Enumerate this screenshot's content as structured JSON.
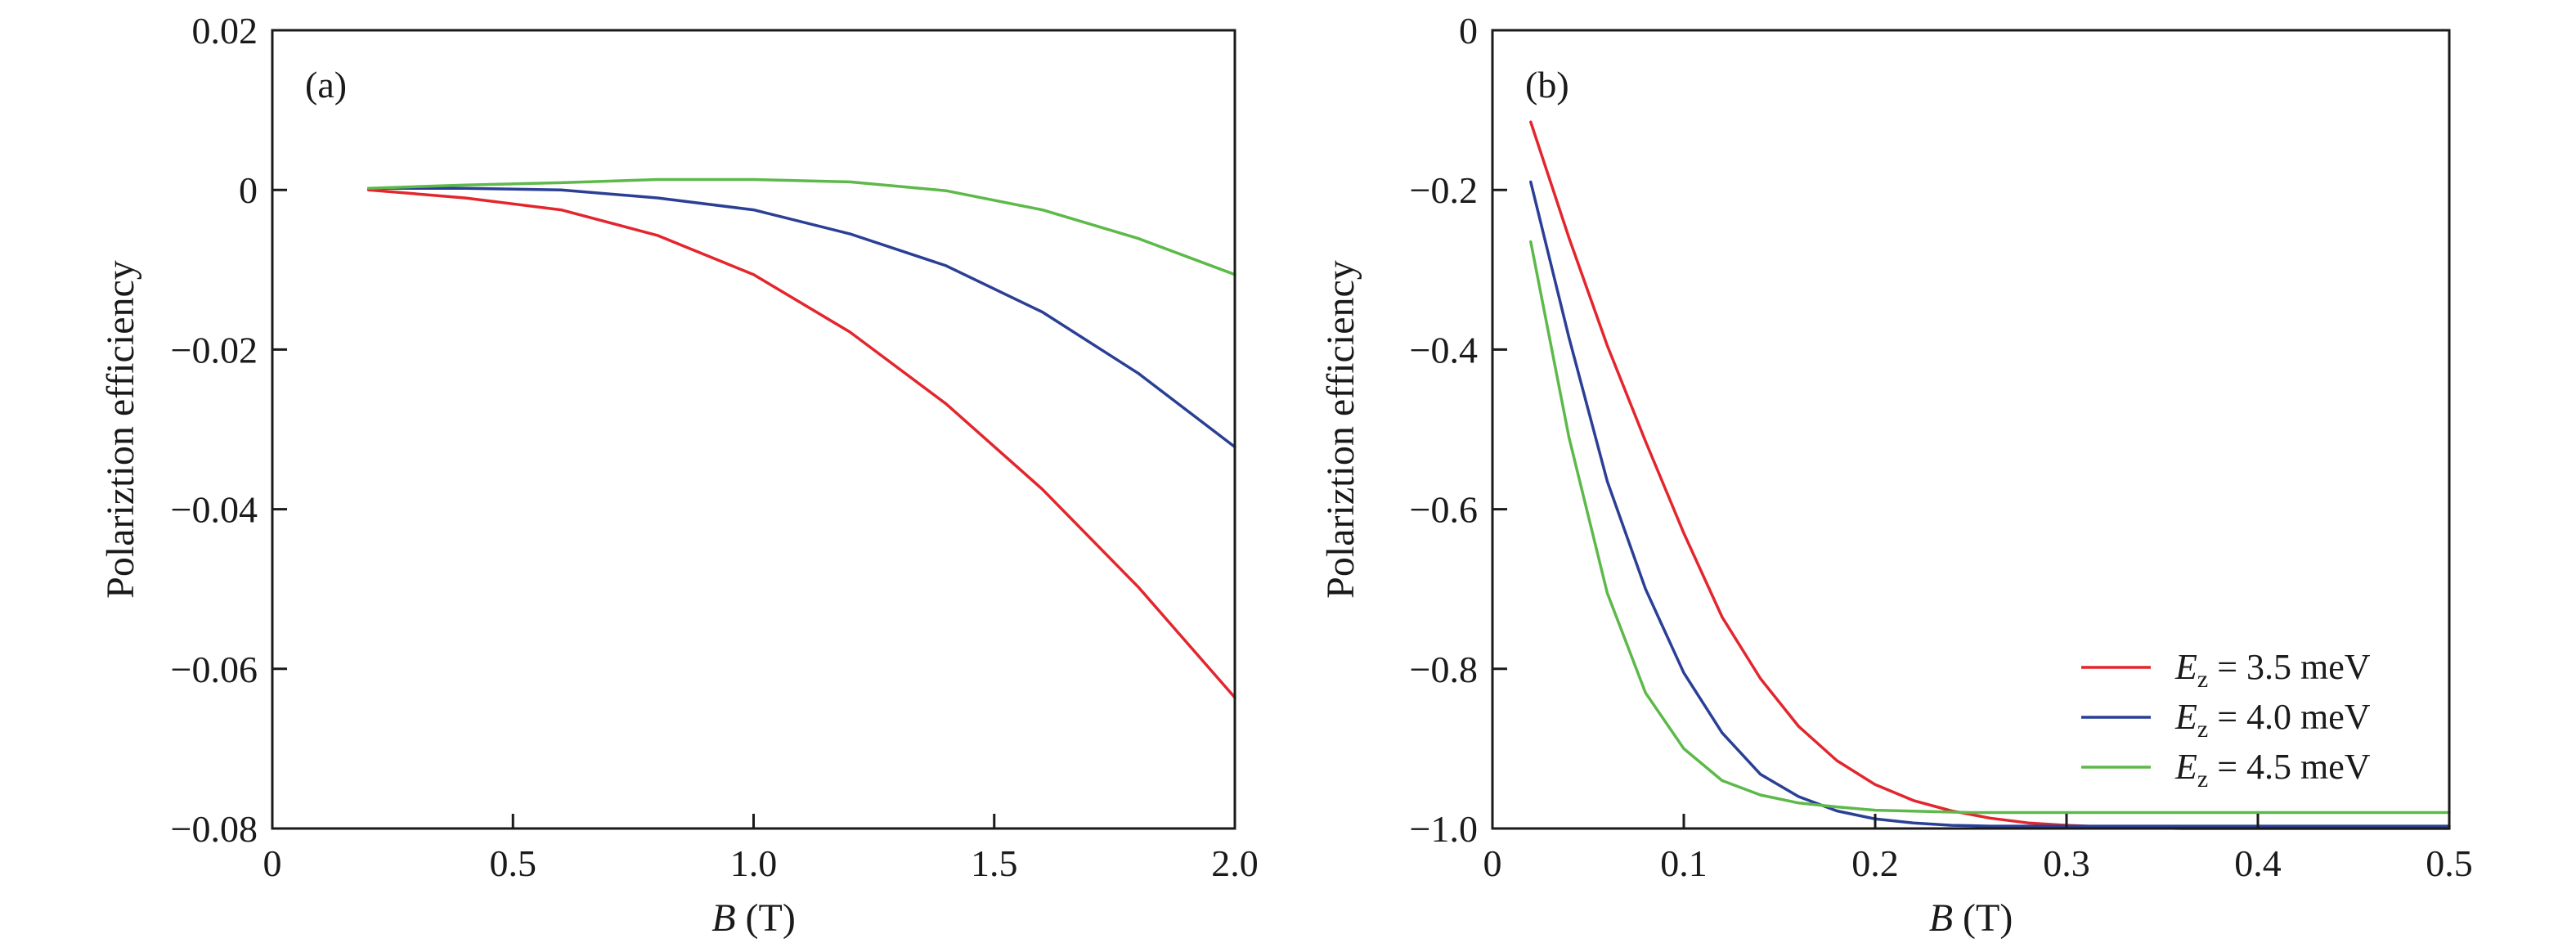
{
  "chart_data": [
    {
      "type": "line",
      "panel_label": "(a)",
      "xlabel_var": "B",
      "xlabel_unit": " (T)",
      "ylabel": "Polariztion efficiency",
      "xlim": [
        0,
        2.0
      ],
      "ylim": [
        -0.08,
        0.02
      ],
      "xticks": [
        0,
        0.5,
        1.0,
        1.5,
        2.0
      ],
      "xtick_labels": [
        "0",
        "0.5",
        "1.0",
        "1.5",
        "2.0"
      ],
      "yticks": [
        0.02,
        0,
        -0.02,
        -0.04,
        -0.06,
        -0.08
      ],
      "ytick_labels": [
        "0.02",
        "0",
        "−0.02",
        "−0.04",
        "−0.06",
        "−0.08"
      ],
      "series": [
        {
          "name": "Ez = 3.5 meV",
          "color": "#e3262d",
          "x": [
            0.2,
            0.4,
            0.6,
            0.8,
            1.0,
            1.2,
            1.4,
            1.6,
            1.8,
            2.0
          ],
          "y": [
            0.0,
            -0.001,
            -0.0025,
            -0.0057,
            -0.0106,
            -0.0178,
            -0.0268,
            -0.0375,
            -0.0498,
            -0.0636
          ]
        },
        {
          "name": "Ez = 4.0 meV",
          "color": "#2a3f95",
          "x": [
            0.2,
            0.4,
            0.6,
            0.8,
            1.0,
            1.2,
            1.4,
            1.6,
            1.8,
            2.0
          ],
          "y": [
            0.0002,
            0.0002,
            0.0,
            -0.001,
            -0.0025,
            -0.0055,
            -0.0095,
            -0.0153,
            -0.023,
            -0.0322
          ]
        },
        {
          "name": "Ez = 4.5 meV",
          "color": "#5db94a",
          "x": [
            0.2,
            0.4,
            0.6,
            0.8,
            1.0,
            1.2,
            1.4,
            1.6,
            1.8,
            2.0
          ],
          "y": [
            0.0002,
            0.0006,
            0.0009,
            0.0013,
            0.0013,
            0.001,
            -0.0001,
            -0.0025,
            -0.0061,
            -0.0106
          ]
        }
      ]
    },
    {
      "type": "line",
      "panel_label": "(b)",
      "xlabel_var": "B",
      "xlabel_unit": " (T)",
      "ylabel": "Polariztion efficiency",
      "xlim": [
        0,
        0.5
      ],
      "ylim": [
        -1.0,
        0
      ],
      "xticks": [
        0,
        0.1,
        0.2,
        0.3,
        0.4,
        0.5
      ],
      "xtick_labels": [
        "0",
        "0.1",
        "0.2",
        "0.3",
        "0.4",
        "0.5"
      ],
      "yticks": [
        0,
        -0.2,
        -0.4,
        -0.6,
        -0.8,
        -1.0
      ],
      "ytick_labels": [
        "0",
        "−0.2",
        "−0.4",
        "−0.6",
        "−0.8",
        "−1.0"
      ],
      "legend_position": "bottom-right",
      "series": [
        {
          "name": "Ez = 3.5 meV",
          "legend_var": "E",
          "legend_sub": "z",
          "legend_rest": " = 3.5 meV",
          "color": "#e3262d",
          "x": [
            0.02,
            0.04,
            0.06,
            0.08,
            0.1,
            0.12,
            0.14,
            0.16,
            0.18,
            0.2,
            0.22,
            0.24,
            0.26,
            0.28,
            0.3,
            0.32,
            0.34,
            0.36,
            0.4,
            0.45,
            0.5
          ],
          "y": [
            -0.115,
            -0.26,
            -0.395,
            -0.515,
            -0.63,
            -0.735,
            -0.812,
            -0.872,
            -0.915,
            -0.945,
            -0.965,
            -0.978,
            -0.987,
            -0.993,
            -0.996,
            -0.998,
            -0.999,
            -1.0,
            -1.0,
            -1.0,
            -1.0
          ]
        },
        {
          "name": "Ez = 4.0 meV",
          "legend_var": "E",
          "legend_sub": "z",
          "legend_rest": " = 4.0 meV",
          "color": "#2a3f95",
          "x": [
            0.02,
            0.04,
            0.06,
            0.08,
            0.1,
            0.12,
            0.14,
            0.16,
            0.18,
            0.2,
            0.22,
            0.24,
            0.26,
            0.3,
            0.35,
            0.4,
            0.45,
            0.5
          ],
          "y": [
            -0.19,
            -0.385,
            -0.565,
            -0.7,
            -0.805,
            -0.88,
            -0.932,
            -0.96,
            -0.978,
            -0.988,
            -0.993,
            -0.996,
            -0.997,
            -0.997,
            -0.997,
            -0.997,
            -0.997,
            -0.997
          ]
        },
        {
          "name": "Ez = 4.5 meV",
          "legend_var": "E",
          "legend_sub": "z",
          "legend_rest": " = 4.5 meV",
          "color": "#5db94a",
          "x": [
            0.02,
            0.04,
            0.06,
            0.08,
            0.1,
            0.12,
            0.14,
            0.16,
            0.18,
            0.2,
            0.25,
            0.3,
            0.35,
            0.4,
            0.45,
            0.5
          ],
          "y": [
            -0.265,
            -0.51,
            -0.705,
            -0.83,
            -0.9,
            -0.94,
            -0.958,
            -0.968,
            -0.973,
            -0.977,
            -0.98,
            -0.98,
            -0.98,
            -0.98,
            -0.98,
            -0.98
          ]
        }
      ]
    }
  ]
}
